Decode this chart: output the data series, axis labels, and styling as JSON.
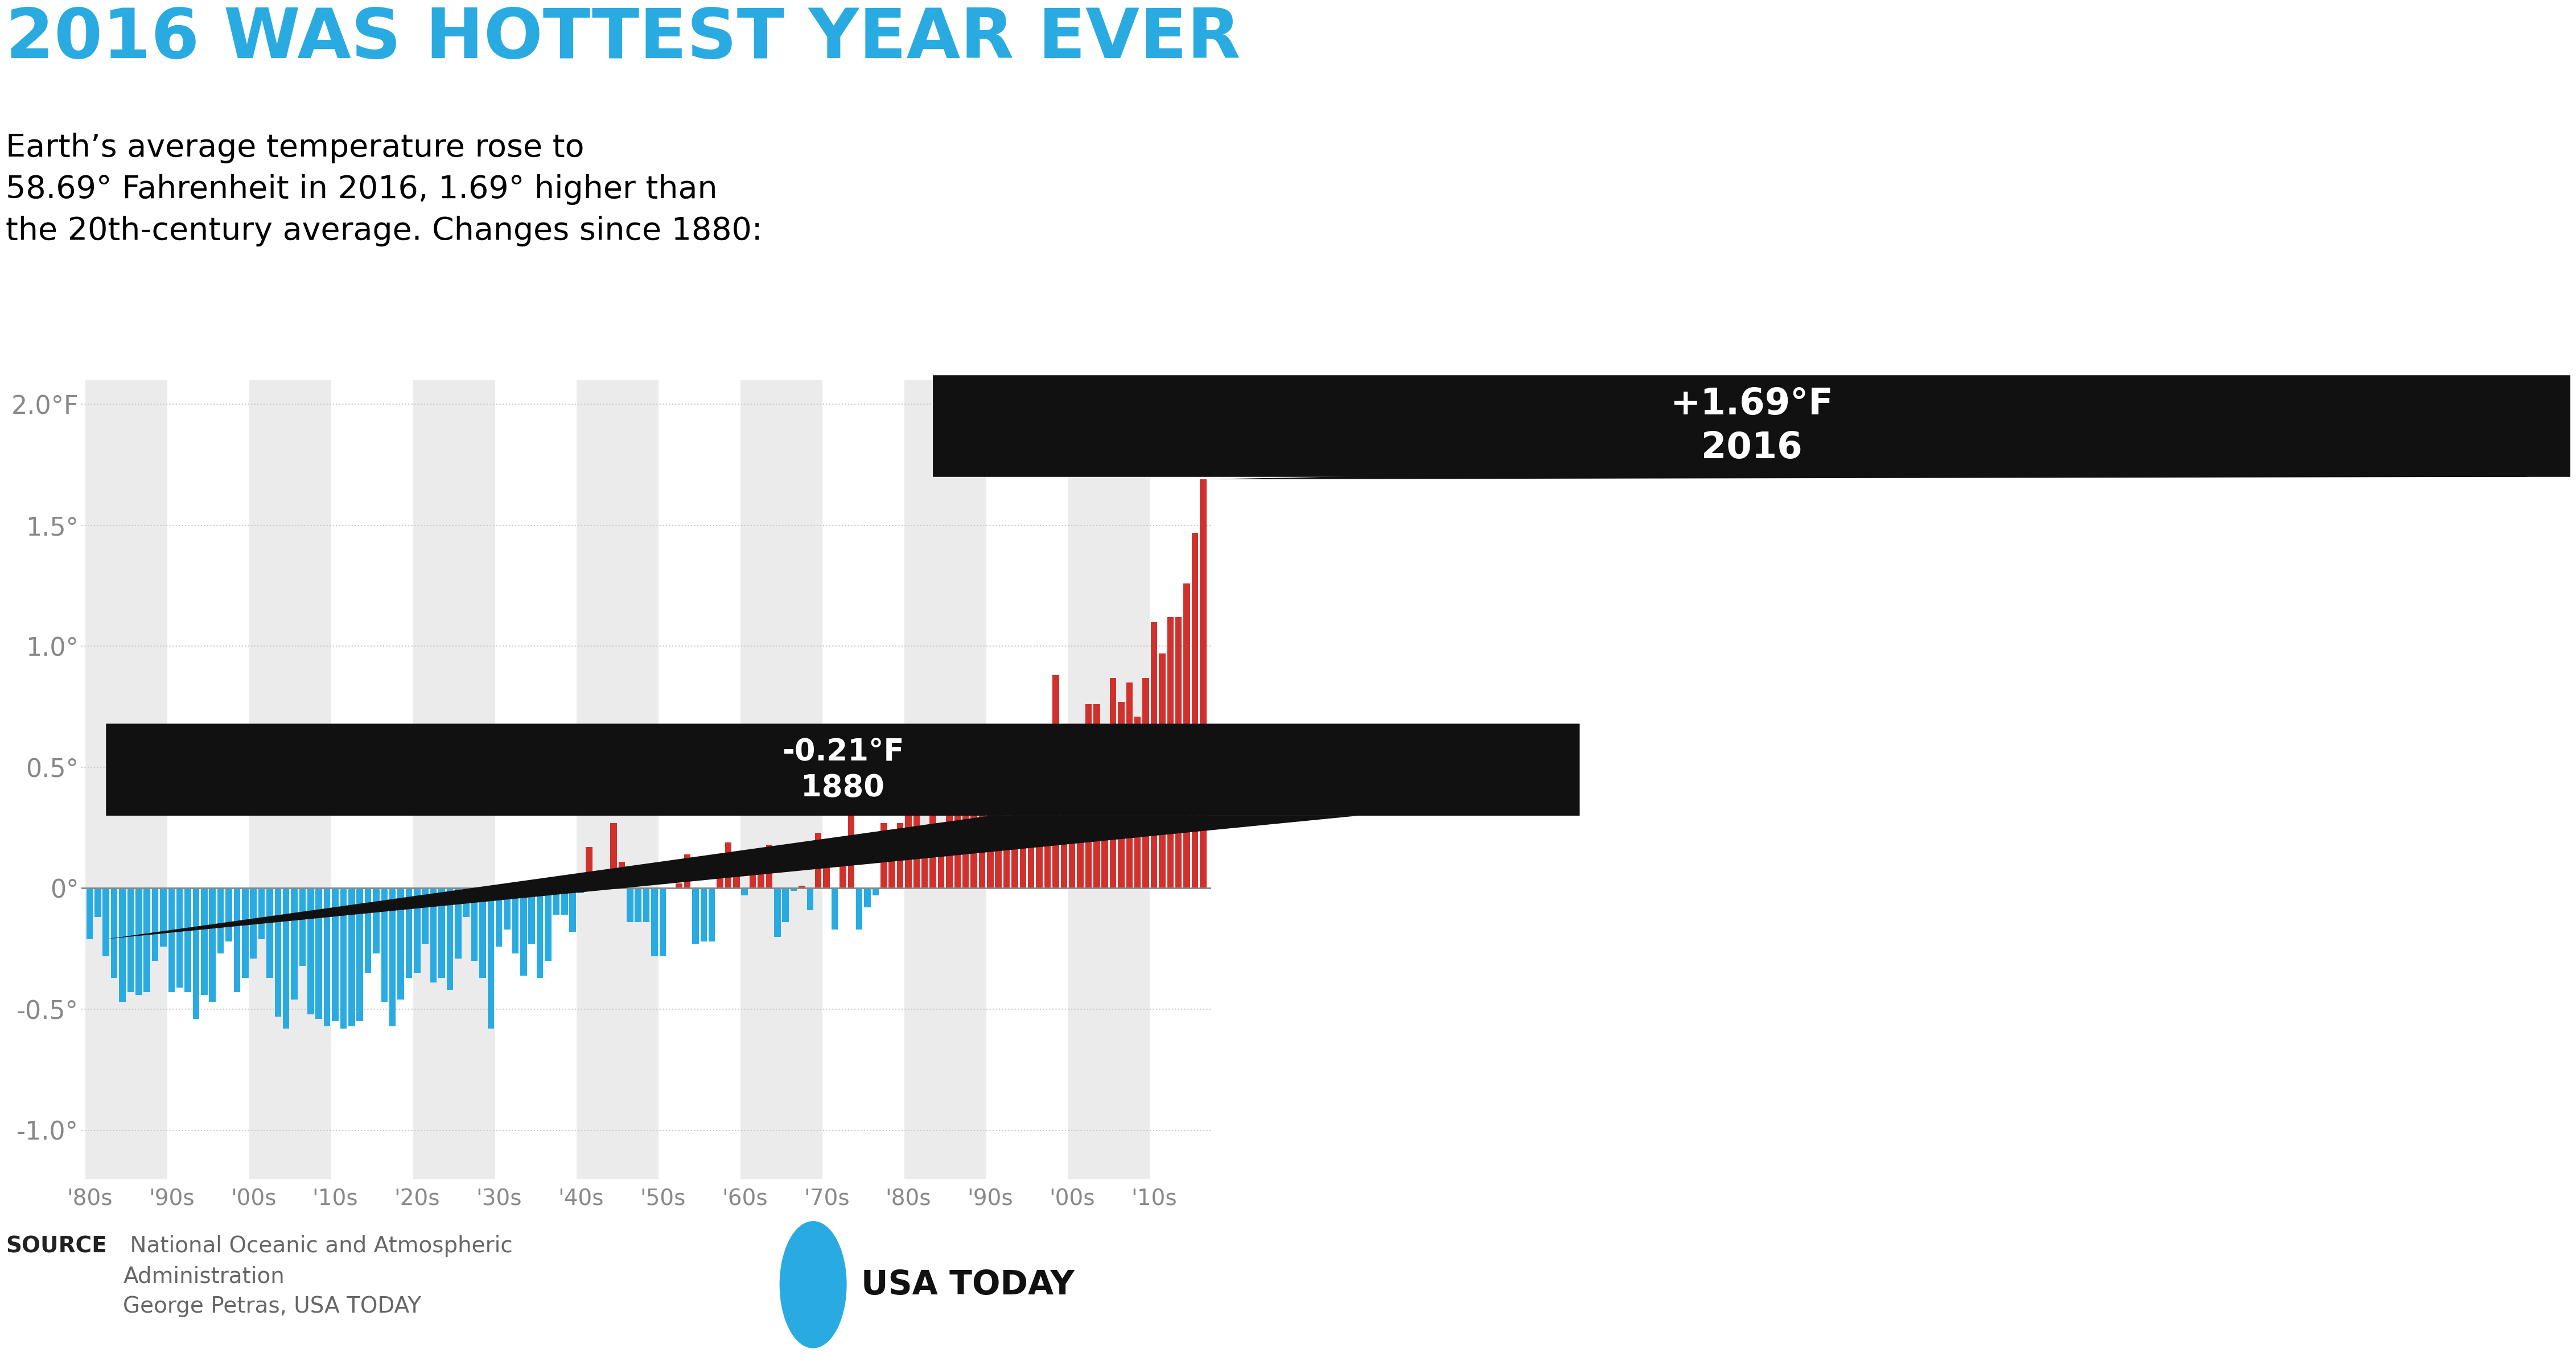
{
  "title": "2016 WAS HOTTEST YEAR EVER",
  "subtitle": "Earth’s average temperature rose to\n58.69° Fahrenheit in 2016, 1.69° higher than\nthe 20th-century average. Changes since 1880:",
  "title_color": "#29ABE2",
  "subtitle_color": "#000000",
  "background_color": "#ffffff",
  "bar_color_positive": "#D0312D",
  "bar_color_negative": "#29ABE2",
  "grid_color": "#C8C8C8",
  "stripe_color": "#EBEBEB",
  "zero_line_color": "#888888",
  "ylabel_color": "#888888",
  "xtick_color": "#888888",
  "annotation_box_color": "#111111",
  "usatoday_circle_color": "#29ABE2",
  "yticks": [
    -1.0,
    -0.5,
    0.0,
    0.5,
    1.0,
    1.5,
    2.0
  ],
  "ytick_labels": [
    "-1.0°",
    "-0.5°",
    "0°",
    "0.5°",
    "1.0°",
    "1.5°",
    "2.0°F"
  ],
  "xtick_positions": [
    1880,
    1890,
    1900,
    1910,
    1920,
    1930,
    1940,
    1950,
    1960,
    1970,
    1980,
    1990,
    2000,
    2010
  ],
  "xtick_labels": [
    "'80s",
    "'90s",
    "'00s",
    "'10s",
    "'20s",
    "'30s",
    "'40s",
    "'50s",
    "'60s",
    "'70s",
    "'80s",
    "'90s",
    "'00s",
    "'10s"
  ],
  "stripe_decades": [
    1880,
    1900,
    1920,
    1940,
    1960,
    1980,
    2000
  ],
  "years": [
    1880,
    1881,
    1882,
    1883,
    1884,
    1885,
    1886,
    1887,
    1888,
    1889,
    1890,
    1891,
    1892,
    1893,
    1894,
    1895,
    1896,
    1897,
    1898,
    1899,
    1900,
    1901,
    1902,
    1903,
    1904,
    1905,
    1906,
    1907,
    1908,
    1909,
    1910,
    1911,
    1912,
    1913,
    1914,
    1915,
    1916,
    1917,
    1918,
    1919,
    1920,
    1921,
    1922,
    1923,
    1924,
    1925,
    1926,
    1927,
    1928,
    1929,
    1930,
    1931,
    1932,
    1933,
    1934,
    1935,
    1936,
    1937,
    1938,
    1939,
    1940,
    1941,
    1942,
    1943,
    1944,
    1945,
    1946,
    1947,
    1948,
    1949,
    1950,
    1951,
    1952,
    1953,
    1954,
    1955,
    1956,
    1957,
    1958,
    1959,
    1960,
    1961,
    1962,
    1963,
    1964,
    1965,
    1966,
    1967,
    1968,
    1969,
    1970,
    1971,
    1972,
    1973,
    1974,
    1975,
    1976,
    1977,
    1978,
    1979,
    1980,
    1981,
    1982,
    1983,
    1984,
    1985,
    1986,
    1987,
    1988,
    1989,
    1990,
    1991,
    1992,
    1993,
    1994,
    1995,
    1996,
    1997,
    1998,
    1999,
    2000,
    2001,
    2002,
    2003,
    2004,
    2005,
    2006,
    2007,
    2008,
    2009,
    2010,
    2011,
    2012,
    2013,
    2014,
    2015,
    2016
  ],
  "anomalies": [
    -0.21,
    -0.12,
    -0.28,
    -0.37,
    -0.47,
    -0.43,
    -0.44,
    -0.43,
    -0.3,
    -0.24,
    -0.43,
    -0.41,
    -0.43,
    -0.54,
    -0.44,
    -0.47,
    -0.27,
    -0.22,
    -0.43,
    -0.37,
    -0.29,
    -0.21,
    -0.37,
    -0.53,
    -0.58,
    -0.46,
    -0.32,
    -0.52,
    -0.54,
    -0.57,
    -0.55,
    -0.58,
    -0.57,
    -0.55,
    -0.35,
    -0.27,
    -0.47,
    -0.57,
    -0.46,
    -0.37,
    -0.35,
    -0.23,
    -0.39,
    -0.37,
    -0.42,
    -0.29,
    -0.12,
    -0.3,
    -0.37,
    -0.58,
    -0.24,
    -0.17,
    -0.27,
    -0.36,
    -0.23,
    -0.37,
    -0.3,
    -0.11,
    -0.11,
    -0.18,
    -0.02,
    0.17,
    0.06,
    0.05,
    0.27,
    0.11,
    -0.14,
    -0.14,
    -0.14,
    -0.28,
    -0.28,
    0.0,
    0.02,
    0.14,
    -0.23,
    -0.22,
    -0.22,
    0.08,
    0.19,
    0.14,
    -0.03,
    0.09,
    0.07,
    0.18,
    -0.2,
    -0.14,
    -0.01,
    0.01,
    -0.09,
    0.23,
    0.1,
    -0.17,
    0.12,
    0.33,
    -0.17,
    -0.08,
    -0.03,
    0.27,
    0.2,
    0.27,
    0.37,
    0.48,
    0.19,
    0.4,
    0.26,
    0.35,
    0.33,
    0.57,
    0.63,
    0.4,
    0.61,
    0.56,
    0.27,
    0.4,
    0.44,
    0.62,
    0.45,
    0.61,
    0.88,
    0.49,
    0.48,
    0.67,
    0.76,
    0.76,
    0.64,
    0.87,
    0.77,
    0.85,
    0.71,
    0.87,
    1.1,
    0.97,
    1.12,
    1.12,
    1.26,
    1.47,
    1.69
  ]
}
